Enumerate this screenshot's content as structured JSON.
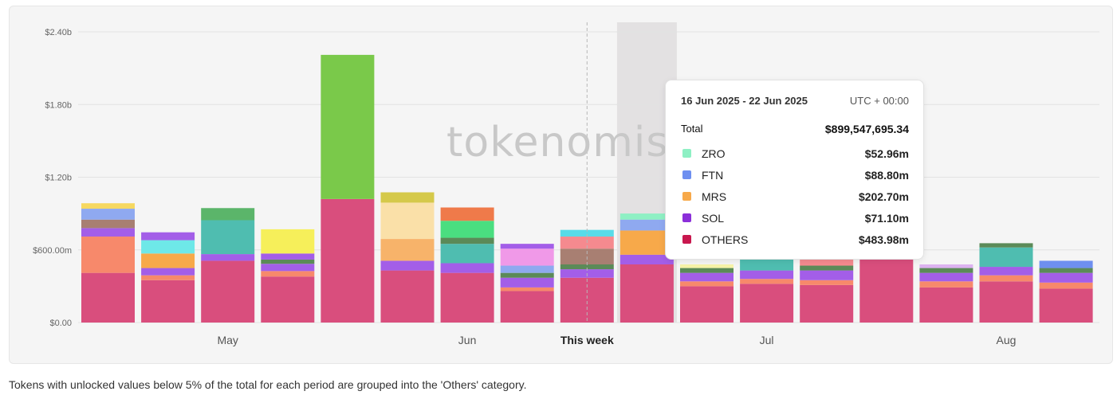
{
  "chart_data": {
    "type": "bar",
    "stacked": true,
    "ylim": [
      0,
      2400000000
    ],
    "y_ticks": [
      {
        "value": 0,
        "label": "$0.00"
      },
      {
        "value": 600000000,
        "label": "$600.00m"
      },
      {
        "value": 1200000000,
        "label": "$1.20b"
      },
      {
        "value": 1800000000,
        "label": "$1.80b"
      },
      {
        "value": 2400000000,
        "label": "$2.40b"
      }
    ],
    "x_labels": [
      {
        "bar_index": 2.5,
        "label": "May",
        "bold": false
      },
      {
        "bar_index": 6.5,
        "label": "Jun",
        "bold": false
      },
      {
        "bar_index": 8.5,
        "label": "This week",
        "bold": true
      },
      {
        "bar_index": 11.5,
        "label": "Jul",
        "bold": false
      },
      {
        "bar_index": 15.5,
        "label": "Aug",
        "bold": false
      }
    ],
    "this_week_index": 8,
    "highlighted_index": 9,
    "bars": [
      {
        "period": "bar-01",
        "segments": [
          [
            410000000,
            "#d94e7d"
          ],
          [
            300000000,
            "#f7896b"
          ],
          [
            70000000,
            "#a35ee8"
          ],
          [
            70000000,
            "#a87f72"
          ],
          [
            90000000,
            "#8fa9f0"
          ],
          [
            45000000,
            "#f6d860"
          ]
        ]
      },
      {
        "period": "bar-02",
        "segments": [
          [
            350000000,
            "#d94e7d"
          ],
          [
            40000000,
            "#f7896b"
          ],
          [
            60000000,
            "#a35ee8"
          ],
          [
            120000000,
            "#f7a94a"
          ],
          [
            110000000,
            "#6ee8e8"
          ],
          [
            65000000,
            "#a35ee8"
          ]
        ]
      },
      {
        "period": "bar-03",
        "segments": [
          [
            510000000,
            "#d94e7d"
          ],
          [
            55000000,
            "#a35ee8"
          ],
          [
            280000000,
            "#4fbdb0"
          ],
          [
            100000000,
            "#5bb56a"
          ]
        ]
      },
      {
        "period": "bar-04",
        "segments": [
          [
            380000000,
            "#d94e7d"
          ],
          [
            45000000,
            "#f7896b"
          ],
          [
            60000000,
            "#a35ee8"
          ],
          [
            35000000,
            "#5b8a58"
          ],
          [
            50000000,
            "#a35ee8"
          ],
          [
            200000000,
            "#f6ef5a"
          ]
        ]
      },
      {
        "period": "bar-05",
        "segments": [
          [
            1020000000,
            "#d94e7d"
          ],
          [
            1190000000,
            "#7ac94a"
          ]
        ]
      },
      {
        "period": "bar-06",
        "segments": [
          [
            430000000,
            "#d94e7d"
          ],
          [
            80000000,
            "#a35ee8"
          ],
          [
            180000000,
            "#f7b36a"
          ],
          [
            300000000,
            "#fae0a8"
          ],
          [
            85000000,
            "#d5c94a"
          ]
        ]
      },
      {
        "period": "bar-07",
        "segments": [
          [
            410000000,
            "#d94e7d"
          ],
          [
            80000000,
            "#a35ee8"
          ],
          [
            160000000,
            "#4fbdb0"
          ],
          [
            50000000,
            "#5b8a58"
          ],
          [
            140000000,
            "#4ade80"
          ],
          [
            110000000,
            "#ef7a4a"
          ]
        ]
      },
      {
        "period": "bar-08",
        "segments": [
          [
            260000000,
            "#d94e7d"
          ],
          [
            30000000,
            "#f7896b"
          ],
          [
            80000000,
            "#a35ee8"
          ],
          [
            40000000,
            "#5b8a58"
          ],
          [
            60000000,
            "#8fa9f0"
          ],
          [
            140000000,
            "#f099e8"
          ],
          [
            40000000,
            "#a35ee8"
          ]
        ]
      },
      {
        "period": "bar-09",
        "segments": [
          [
            370000000,
            "#d94e7d"
          ],
          [
            70000000,
            "#a35ee8"
          ],
          [
            40000000,
            "#5b8a58"
          ],
          [
            130000000,
            "#a87f72"
          ],
          [
            100000000,
            "#f58a8f"
          ],
          [
            55000000,
            "#58dbe8"
          ]
        ]
      },
      {
        "period": "bar-10",
        "segments": [
          [
            480000000,
            "#d94e7d"
          ],
          [
            80000000,
            "#a35ee8"
          ],
          [
            200000000,
            "#f7a94a"
          ],
          [
            90000000,
            "#8fa9f0"
          ],
          [
            50000000,
            "#8ef0c4"
          ]
        ]
      },
      {
        "period": "bar-11",
        "segments": [
          [
            300000000,
            "#d94e7d"
          ],
          [
            40000000,
            "#f7896b"
          ],
          [
            70000000,
            "#a35ee8"
          ],
          [
            40000000,
            "#5b8a58"
          ],
          [
            30000000,
            "#f7f3a8"
          ]
        ]
      },
      {
        "period": "bar-12",
        "segments": [
          [
            320000000,
            "#d94e7d"
          ],
          [
            40000000,
            "#f7896b"
          ],
          [
            70000000,
            "#a35ee8"
          ],
          [
            440000000,
            "#4fbdb0"
          ]
        ]
      },
      {
        "period": "bar-13",
        "segments": [
          [
            310000000,
            "#d94e7d"
          ],
          [
            40000000,
            "#f7896b"
          ],
          [
            80000000,
            "#a35ee8"
          ],
          [
            40000000,
            "#5b8a58"
          ],
          [
            420000000,
            "#f58a8f"
          ]
        ]
      },
      {
        "period": "bar-14",
        "segments": [
          [
            520000000,
            "#d94e7d"
          ],
          [
            290000000,
            "#f7896b"
          ]
        ]
      },
      {
        "period": "bar-15",
        "segments": [
          [
            290000000,
            "#d94e7d"
          ],
          [
            50000000,
            "#f7896b"
          ],
          [
            70000000,
            "#a35ee8"
          ],
          [
            40000000,
            "#5b8a58"
          ],
          [
            30000000,
            "#dcb2f0"
          ]
        ]
      },
      {
        "period": "bar-16",
        "segments": [
          [
            340000000,
            "#d94e7d"
          ],
          [
            50000000,
            "#f7896b"
          ],
          [
            70000000,
            "#a35ee8"
          ],
          [
            160000000,
            "#4fbdb0"
          ],
          [
            35000000,
            "#5b8a58"
          ]
        ]
      },
      {
        "period": "bar-17",
        "segments": [
          [
            280000000,
            "#d94e7d"
          ],
          [
            50000000,
            "#f7896b"
          ],
          [
            80000000,
            "#a35ee8"
          ],
          [
            40000000,
            "#5b8a58"
          ],
          [
            60000000,
            "#6e8ff0"
          ]
        ]
      }
    ]
  },
  "watermark": {
    "text": "tokenomist"
  },
  "tooltip": {
    "range": "16 Jun 2025 - 22 Jun 2025",
    "timezone": "UTC + 00:00",
    "total_label": "Total",
    "total_value": "$899,547,695.34",
    "rows": [
      {
        "name": "ZRO",
        "value": "$52.96m",
        "color": "#8ef0c4"
      },
      {
        "name": "FTN",
        "value": "$88.80m",
        "color": "#6e8ff0"
      },
      {
        "name": "MRS",
        "value": "$202.70m",
        "color": "#f7a94a"
      },
      {
        "name": "SOL",
        "value": "$71.10m",
        "color": "#8b2fd9"
      },
      {
        "name": "OTHERS",
        "value": "$483.98m",
        "color": "#c8174e"
      }
    ]
  },
  "footnote": "Tokens with unlocked values below 5% of the total for each period are grouped into the 'Others' category."
}
